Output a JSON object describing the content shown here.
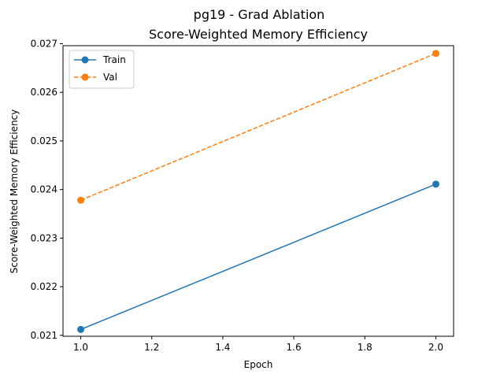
{
  "chart_data": {
    "type": "line",
    "suptitle": "pg19 - Grad Ablation",
    "title": "Score-Weighted Memory Efficiency",
    "xlabel": "Epoch",
    "ylabel": "Score-Weighted Memory Efficiency",
    "xlim": [
      0.95,
      2.05
    ],
    "ylim": [
      0.02098,
      0.02696
    ],
    "xticks": [
      1.0,
      1.2,
      1.4,
      1.6,
      1.8,
      2.0
    ],
    "xtick_labels": [
      "1.0",
      "1.2",
      "1.4",
      "1.6",
      "1.8",
      "2.0"
    ],
    "yticks": [
      0.021,
      0.022,
      0.023,
      0.024,
      0.025,
      0.026,
      0.027
    ],
    "ytick_labels": [
      "0.021",
      "0.022",
      "0.023",
      "0.024",
      "0.025",
      "0.026",
      "0.027"
    ],
    "grid": false,
    "legend_position": "top-left",
    "series": [
      {
        "name": "Train",
        "color": "#1f77b4",
        "linestyle": "solid",
        "marker": "circle",
        "x": [
          1.0,
          2.0
        ],
        "y": [
          0.02112,
          0.02411
        ]
      },
      {
        "name": "Val",
        "color": "#ff7f0e",
        "linestyle": "dashed",
        "marker": "circle",
        "x": [
          1.0,
          2.0
        ],
        "y": [
          0.02378,
          0.0268
        ]
      }
    ]
  }
}
